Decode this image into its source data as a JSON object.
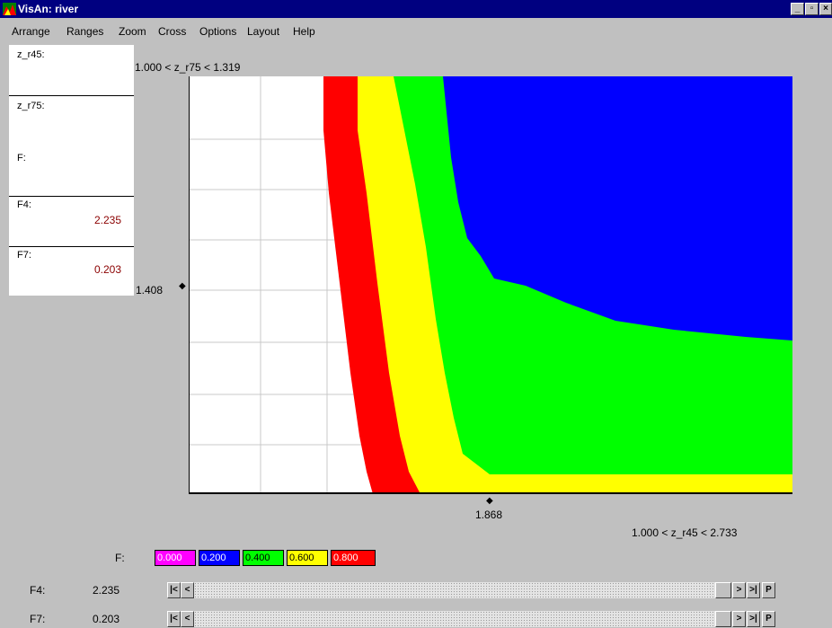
{
  "window": {
    "title": "VisAn: river"
  },
  "menu": [
    "Arrange",
    "Ranges",
    "Zoom",
    "Cross",
    "Options",
    "Layout",
    "Help"
  ],
  "side_panel": {
    "z_r45_label": "z_r45:",
    "z_r75_label": "z_r75:",
    "f_label": "F:",
    "f4_label": "F4:",
    "f4_value": "2.235",
    "f7_label": "F7:",
    "f7_value": "0.203"
  },
  "plot": {
    "y_range_label": "1.000 < z_r75 < 1.319",
    "x_range_label": "1.000 < z_r45 < 2.733",
    "y_cross_value": "1.408",
    "x_cross_value": "1.868",
    "colors": {
      "blue": "#0000ff",
      "green": "#00ff00",
      "yellow": "#ffff00",
      "red": "#ff0000",
      "white": "#ffffff"
    }
  },
  "legend": {
    "label": "F:",
    "items": [
      {
        "value": "0.000",
        "color": "#ff00ff"
      },
      {
        "value": "0.200",
        "color": "#0000ff"
      },
      {
        "value": "0.400",
        "color": "#00ff00"
      },
      {
        "value": "0.600",
        "color": "#ffff00"
      },
      {
        "value": "0.800",
        "color": "#ff0000"
      }
    ]
  },
  "sliders": [
    {
      "label": "F4:",
      "value": "2.235"
    },
    {
      "label": "F7:",
      "value": "0.203"
    }
  ],
  "slider_buttons": {
    "first": "|<",
    "prev": "<",
    "next": ">",
    "last": ">|",
    "p": "P"
  }
}
